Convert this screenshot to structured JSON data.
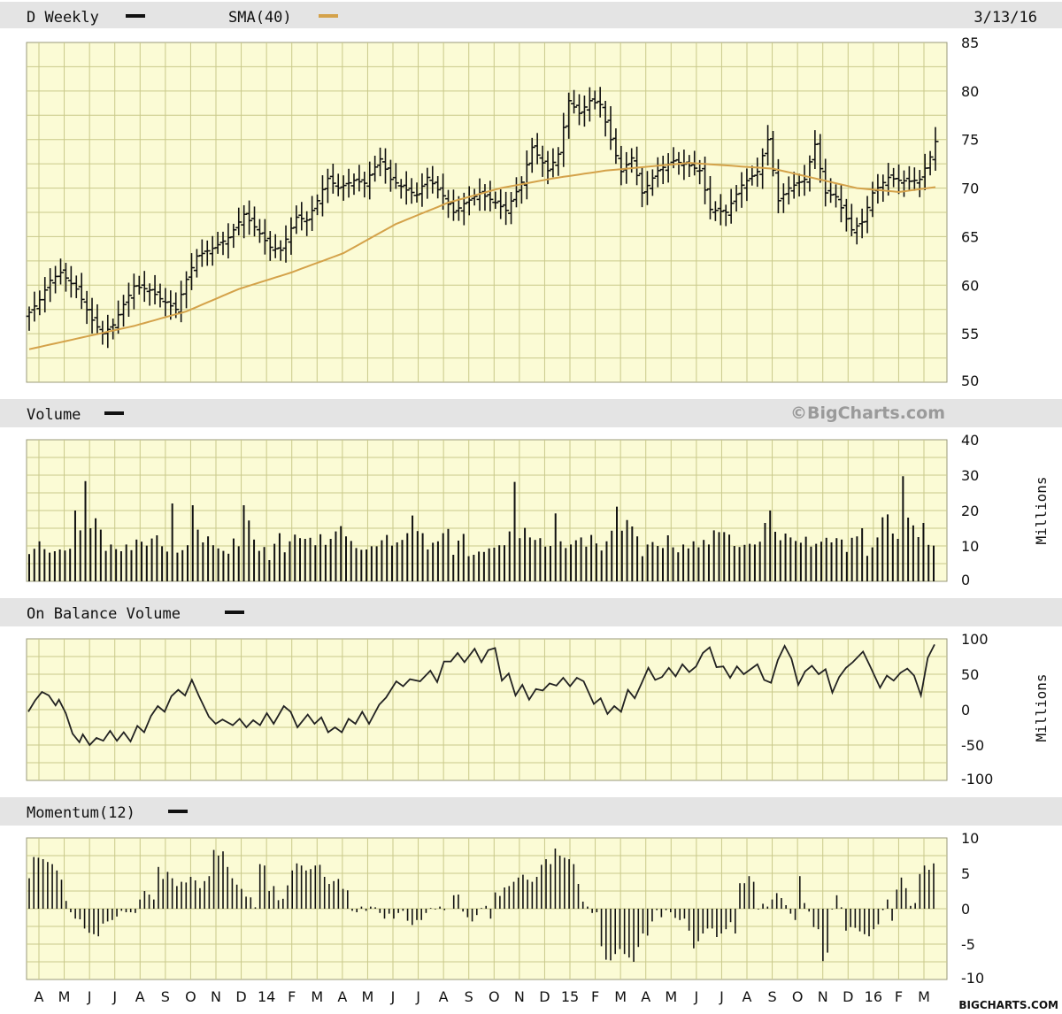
{
  "chart_data": [
    {
      "type": "ohlc",
      "title": "D Weekly",
      "date": "3/13/16",
      "legend": [
        {
          "name": "D Weekly",
          "color": "#111111"
        },
        {
          "name": "SMA(40)",
          "color": "#d4a24a"
        }
      ],
      "ylim": [
        50,
        85
      ],
      "yticks": [
        50,
        55,
        60,
        65,
        70,
        75,
        80,
        85
      ],
      "price_anchors": [
        [
          0,
          57.2
        ],
        [
          2,
          58.5
        ],
        [
          4,
          60.5
        ],
        [
          6,
          61.3
        ],
        [
          9,
          59.6
        ],
        [
          12,
          56.4
        ],
        [
          14,
          55.0
        ],
        [
          16,
          55.9
        ],
        [
          18,
          58.0
        ],
        [
          20,
          59.9
        ],
        [
          23,
          59.5
        ],
        [
          25,
          58.6
        ],
        [
          28,
          57.5
        ],
        [
          30,
          60.6
        ],
        [
          32,
          63.0
        ],
        [
          35,
          63.8
        ],
        [
          38,
          64.9
        ],
        [
          41,
          67.3
        ],
        [
          43,
          66.0
        ],
        [
          46,
          63.9
        ],
        [
          48,
          63.6
        ],
        [
          51,
          67.0
        ],
        [
          53,
          66.7
        ],
        [
          55,
          68.7
        ],
        [
          57,
          71.0
        ],
        [
          59,
          70.0
        ],
        [
          62,
          70.8
        ],
        [
          64,
          70.5
        ],
        [
          67,
          73.0
        ],
        [
          69,
          70.9
        ],
        [
          72,
          69.8
        ],
        [
          74,
          69.3
        ],
        [
          76,
          71.1
        ],
        [
          79,
          69.2
        ],
        [
          81,
          67.5
        ],
        [
          83,
          68.4
        ],
        [
          86,
          69.5
        ],
        [
          89,
          68.5
        ],
        [
          91,
          67.7
        ],
        [
          94,
          70.6
        ],
        [
          96,
          74.2
        ],
        [
          99,
          71.8
        ],
        [
          101,
          73.5
        ],
        [
          103,
          79.0
        ],
        [
          105,
          77.7
        ],
        [
          107,
          79.0
        ],
        [
          109,
          78.6
        ],
        [
          111,
          75.0
        ],
        [
          113,
          71.7
        ],
        [
          115,
          73.1
        ],
        [
          117,
          69.5
        ],
        [
          120,
          71.8
        ],
        [
          123,
          72.8
        ],
        [
          126,
          72.3
        ],
        [
          128,
          71.8
        ],
        [
          130,
          67.8
        ],
        [
          133,
          67.5
        ],
        [
          136,
          70.3
        ],
        [
          139,
          71.7
        ],
        [
          141,
          75.0
        ],
        [
          143,
          68.7
        ],
        [
          145,
          70.0
        ],
        [
          148,
          70.9
        ],
        [
          150,
          74.5
        ],
        [
          152,
          69.5
        ],
        [
          154,
          69.1
        ],
        [
          157,
          65.7
        ],
        [
          159,
          66.5
        ],
        [
          161,
          69.5
        ],
        [
          164,
          71.1
        ],
        [
          166,
          70.8
        ],
        [
          168,
          70.7
        ],
        [
          170,
          70.9
        ],
        [
          172,
          73.2
        ],
        [
          173,
          74.8
        ]
      ],
      "sma40_anchors": [
        [
          0,
          53.4
        ],
        [
          10,
          54.6
        ],
        [
          20,
          55.8
        ],
        [
          30,
          57.3
        ],
        [
          40,
          59.6
        ],
        [
          50,
          61.3
        ],
        [
          60,
          63.3
        ],
        [
          70,
          66.3
        ],
        [
          80,
          68.5
        ],
        [
          90,
          70.0
        ],
        [
          100,
          71.0
        ],
        [
          110,
          71.8
        ],
        [
          118,
          72.2
        ],
        [
          126,
          72.6
        ],
        [
          134,
          72.3
        ],
        [
          142,
          72.0
        ],
        [
          150,
          71.0
        ],
        [
          158,
          70.0
        ],
        [
          166,
          69.6
        ],
        [
          173,
          70.1
        ]
      ]
    },
    {
      "type": "bar",
      "title": "Volume",
      "legend": [
        {
          "name": "Volume",
          "color": "#111111"
        }
      ],
      "unit": "Millions",
      "ylim": [
        0,
        40
      ],
      "yticks": [
        0,
        10,
        20,
        30,
        40
      ],
      "values": [
        7.7,
        9.2,
        11.3,
        9.1,
        8.1,
        8.5,
        9.0,
        8.7,
        9.2,
        20.0,
        14.4,
        28.3,
        15.0,
        17.8,
        14.6,
        8.6,
        10.4,
        9.1,
        8.5,
        10.4,
        8.8,
        11.8,
        11.2,
        10.1,
        12.1,
        13.0,
        9.9,
        8.4,
        22.0,
        8.1,
        8.8,
        10.2,
        21.5,
        14.6,
        11.0,
        12.7,
        10.2,
        9.3,
        8.6,
        7.8,
        12.1,
        9.9,
        21.5,
        17.2,
        11.8,
        8.6,
        9.7,
        6.0,
        10.6,
        13.6,
        8.2,
        11.3,
        13.2,
        12.2,
        12.0,
        12.3,
        10.2,
        13.3,
        10.3,
        12.0,
        14.1,
        15.6,
        12.7,
        11.4,
        9.4,
        8.9,
        9.0,
        9.9,
        9.9,
        11.6,
        13.1,
        10.1,
        11.0,
        11.7,
        13.6,
        18.6,
        14.2,
        13.6,
        9.0,
        10.9,
        11.3,
        13.6,
        14.8,
        7.5,
        11.5,
        13.4,
        7.1,
        7.5,
        8.4,
        8.3,
        9.3,
        9.5,
        10.2,
        10.2,
        14.1,
        28.1,
        12.2,
        15.1,
        12.4,
        11.7,
        12.2,
        9.8,
        10.0,
        19.2,
        11.3,
        9.4,
        10.4,
        11.6,
        12.4,
        9.8,
        13.1,
        10.7,
        8.7,
        11.3,
        14.3,
        21.1,
        14.3,
        17.3,
        15.5,
        12.7,
        7.1,
        10.4,
        11.1,
        10.0,
        9.4,
        13.0,
        9.6,
        8.2,
        10.4,
        9.3,
        11.3,
        9.6,
        11.7,
        10.4,
        14.4,
        13.9,
        13.9,
        13.2,
        10.0,
        9.7,
        10.3,
        10.6,
        10.4,
        11.2,
        16.5,
        20.0,
        14.0,
        11.6,
        13.5,
        12.4,
        11.4,
        10.9,
        12.6,
        9.8,
        10.6,
        11.2,
        12.3,
        11.0,
        12.2,
        11.8,
        8.3,
        12.3,
        12.7,
        15.0,
        7.2,
        9.6,
        12.4,
        18.1,
        18.9,
        13.5,
        12.0,
        29.7,
        18.0,
        15.8,
        12.5,
        16.5,
        10.3,
        10.1
      ]
    },
    {
      "type": "line",
      "title": "On Balance Volume",
      "legend": [
        {
          "name": "On Balance Volume",
          "color": "#111111"
        }
      ],
      "unit": "Millions",
      "ylim": [
        -100,
        100
      ],
      "yticks": [
        -100,
        -50,
        0,
        50,
        100
      ],
      "anchors": [
        [
          0,
          -3
        ],
        [
          2,
          13
        ],
        [
          4,
          25
        ],
        [
          6,
          20
        ],
        [
          8,
          6
        ],
        [
          9,
          14
        ],
        [
          11,
          -5
        ],
        [
          13,
          -34
        ],
        [
          15,
          -46
        ],
        [
          16,
          -35
        ],
        [
          18,
          -50
        ],
        [
          20,
          -40
        ],
        [
          22,
          -44
        ],
        [
          24,
          -30
        ],
        [
          26,
          -44
        ],
        [
          28,
          -32
        ],
        [
          30,
          -45
        ],
        [
          32,
          -23
        ],
        [
          34,
          -32
        ],
        [
          36,
          -9
        ],
        [
          38,
          5
        ],
        [
          40,
          -3
        ],
        [
          42,
          19
        ],
        [
          44,
          28
        ],
        [
          46,
          20
        ],
        [
          48,
          42
        ],
        [
          50,
          20
        ],
        [
          53,
          -10
        ],
        [
          55,
          -20
        ],
        [
          57,
          -14
        ],
        [
          60,
          -22
        ],
        [
          62,
          -13
        ],
        [
          64,
          -25
        ],
        [
          66,
          -15
        ],
        [
          68,
          -22
        ],
        [
          70,
          -5
        ],
        [
          72,
          -20
        ],
        [
          75,
          5
        ],
        [
          77,
          -3
        ],
        [
          79,
          -25
        ],
        [
          82,
          -7
        ],
        [
          84,
          -20
        ],
        [
          86,
          -11
        ],
        [
          88,
          -32
        ],
        [
          90,
          -25
        ],
        [
          92,
          -32
        ],
        [
          94,
          -13
        ],
        [
          96,
          -20
        ],
        [
          98,
          -3
        ],
        [
          100,
          -20
        ],
        [
          103,
          7
        ],
        [
          105,
          17
        ],
        [
          108,
          40
        ],
        [
          110,
          33
        ],
        [
          112,
          43
        ],
        [
          115,
          40
        ],
        [
          118,
          55
        ],
        [
          120,
          39
        ],
        [
          122,
          68
        ],
        [
          124,
          68
        ],
        [
          126,
          80
        ],
        [
          128,
          67
        ],
        [
          131,
          86
        ],
        [
          133,
          67
        ],
        [
          135,
          84
        ],
        [
          137,
          87
        ],
        [
          139,
          41
        ],
        [
          141,
          51
        ],
        [
          143,
          20
        ],
        [
          145,
          35
        ],
        [
          147,
          14
        ],
        [
          149,
          29
        ],
        [
          151,
          27
        ],
        [
          153,
          37
        ],
        [
          155,
          34
        ],
        [
          157,
          45
        ],
        [
          159,
          33
        ],
        [
          161,
          45
        ],
        [
          163,
          40
        ],
        [
          166,
          8
        ],
        [
          168,
          16
        ],
        [
          170,
          -6
        ],
        [
          172,
          5
        ],
        [
          174,
          -3
        ],
        [
          176,
          28
        ],
        [
          178,
          16
        ],
        [
          180,
          37
        ],
        [
          182,
          59
        ],
        [
          184,
          42
        ],
        [
          186,
          46
        ],
        [
          188,
          59
        ],
        [
          190,
          47
        ],
        [
          192,
          64
        ],
        [
          194,
          53
        ],
        [
          196,
          61
        ],
        [
          198,
          80
        ],
        [
          200,
          88
        ],
        [
          202,
          60
        ],
        [
          204,
          61
        ],
        [
          206,
          45
        ],
        [
          208,
          61
        ],
        [
          210,
          50
        ],
        [
          212,
          57
        ],
        [
          214,
          64
        ],
        [
          216,
          42
        ],
        [
          218,
          38
        ],
        [
          220,
          70
        ],
        [
          222,
          90
        ],
        [
          224,
          72
        ],
        [
          226,
          35
        ],
        [
          228,
          54
        ],
        [
          230,
          62
        ],
        [
          232,
          50
        ],
        [
          234,
          57
        ],
        [
          236,
          24
        ],
        [
          238,
          46
        ],
        [
          240,
          59
        ],
        [
          242,
          67
        ],
        [
          245,
          82
        ],
        [
          247,
          62
        ],
        [
          250,
          31
        ],
        [
          252,
          48
        ],
        [
          254,
          41
        ],
        [
          256,
          52
        ],
        [
          258,
          58
        ],
        [
          260,
          48
        ],
        [
          262,
          20
        ],
        [
          264,
          73
        ],
        [
          266,
          92
        ]
      ]
    },
    {
      "type": "bar",
      "title": "Momentum(12)",
      "legend": [
        {
          "name": "Momentum(12)",
          "color": "#111111"
        }
      ],
      "ylim": [
        -10,
        10
      ],
      "yticks": [
        -10,
        -5,
        0,
        5,
        10
      ],
      "values": [
        4.3,
        7.3,
        7.2,
        7.0,
        6.6,
        6.3,
        5.4,
        4.1,
        1.1,
        -0.5,
        -1.4,
        -1.5,
        -2.8,
        -3.4,
        -3.6,
        -3.9,
        -2.1,
        -1.8,
        -1.6,
        -1.1,
        -0.3,
        -0.5,
        -0.5,
        -0.6,
        1.3,
        2.5,
        2.0,
        1.3,
        5.9,
        4.2,
        5.2,
        4.3,
        3.2,
        3.8,
        3.7,
        4.5,
        4.0,
        2.9,
        3.9,
        4.6,
        8.3,
        7.5,
        8.1,
        5.9,
        4.3,
        3.4,
        2.8,
        1.7,
        1.6,
        0.2,
        6.3,
        6.1,
        2.5,
        3.2,
        1.2,
        1.4,
        3.3,
        5.4,
        6.4,
        6.1,
        5.4,
        5.6,
        6.1,
        6.2,
        4.5,
        3.5,
        3.9,
        4.2,
        2.8,
        2.6,
        -0.3,
        -0.5,
        0.3,
        -0.3,
        0.3,
        0.2,
        -0.6,
        -1.4,
        -0.7,
        -1.4,
        -0.6,
        -0.3,
        -1.7,
        -2.3,
        -1.6,
        -1.6,
        -0.6,
        0.1,
        -0.1,
        0.3,
        -0.2,
        0.0,
        1.9,
        2.0,
        -0.4,
        -1.2,
        -1.8,
        -0.9,
        0.1,
        0.4,
        -1.4,
        2.3,
        1.8,
        3.0,
        3.2,
        3.8,
        4.4,
        4.8,
        4.1,
        3.8,
        4.5,
        6.2,
        7.0,
        6.3,
        8.5,
        7.5,
        7.2,
        7.0,
        6.3,
        3.5,
        1.0,
        0.3,
        -0.6,
        -0.5,
        -5.3,
        -7.2,
        -7.3,
        -6.4,
        -5.7,
        -6.4,
        -6.9,
        -7.5,
        -5.4,
        -3.5,
        -3.8,
        -1.8,
        -0.2,
        -1.2,
        -0.2,
        -0.5,
        -1.3,
        -1.6,
        -1.4,
        -3.1,
        -5.6,
        -4.6,
        -3.5,
        -2.8,
        -2.8,
        -4.0,
        -3.5,
        -2.9,
        -1.9,
        -3.5,
        3.6,
        3.6,
        4.6,
        3.8,
        -0.1,
        0.7,
        0.3,
        1.3,
        2.2,
        1.5,
        0.5,
        -0.7,
        -1.6,
        4.6,
        0.8,
        -0.4,
        -2.6,
        -2.9,
        -7.4,
        -6.2,
        -0.1,
        1.9,
        0.2,
        -3.1,
        -2.6,
        -2.7,
        -3.2,
        -3.6,
        -3.9,
        -2.9,
        -2.2,
        -0.2,
        1.3,
        -1.7,
        2.7,
        4.4,
        2.9,
        0.4,
        0.8,
        4.9,
        6.1,
        5.5,
        6.4
      ]
    }
  ],
  "xlabels": [
    "A",
    "M",
    "J",
    "J",
    "A",
    "S",
    "O",
    "N",
    "D",
    "14",
    "F",
    "M",
    "A",
    "M",
    "J",
    "J",
    "A",
    "S",
    "O",
    "N",
    "D",
    "15",
    "F",
    "M",
    "A",
    "M",
    "J",
    "J",
    "A",
    "S",
    "O",
    "N",
    "D",
    "16",
    "F",
    "M"
  ],
  "watermark": "©BigCharts.com",
  "footer": "BIGCHARTS.COM",
  "colors": {
    "plot_bg": "#fbfbd5",
    "grid": "#c9c98a",
    "header_bg": "#e4e4e4",
    "ink": "#111111",
    "sma": "#d4a24a"
  }
}
